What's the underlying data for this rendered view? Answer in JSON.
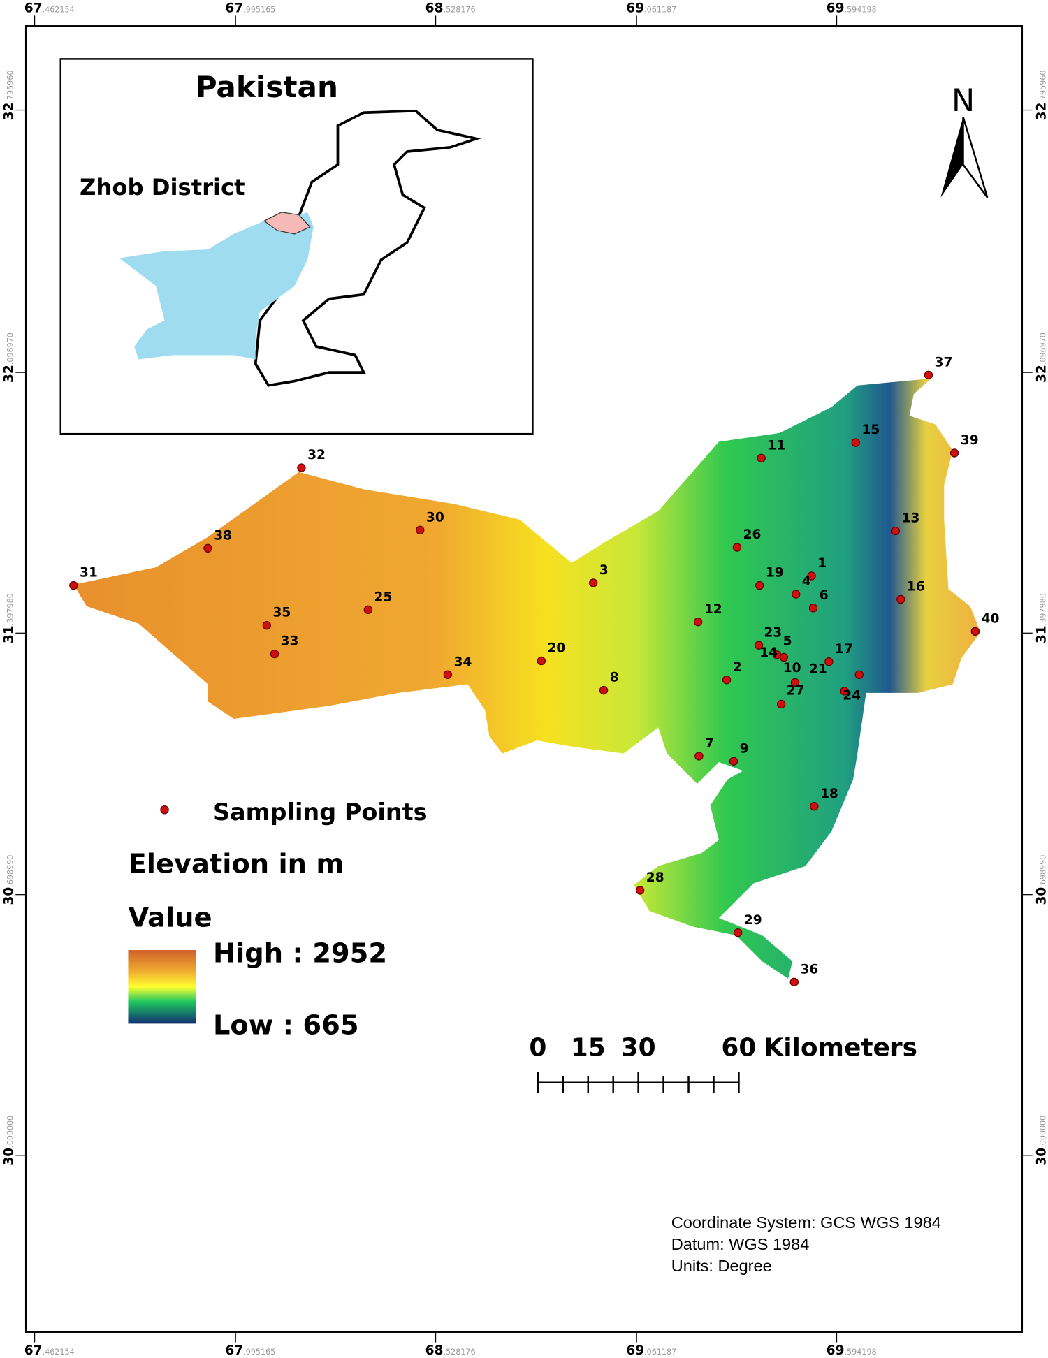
{
  "map": {
    "top_ticks": [
      {
        "whole": "67",
        "fraction": ".462154"
      },
      {
        "whole": "67",
        "fraction": ".995165"
      },
      {
        "whole": "68",
        "fraction": ".528176"
      },
      {
        "whole": "69",
        "fraction": ".061187"
      },
      {
        "whole": "69",
        "fraction": ".594198"
      }
    ],
    "side_ticks": [
      {
        "whole": "32",
        "fraction": ".795960"
      },
      {
        "whole": "32",
        "fraction": ".096970"
      },
      {
        "whole": "31",
        "fraction": ".397980"
      },
      {
        "whole": "30",
        "fraction": ".698990"
      },
      {
        "whole": "30",
        "fraction": ".000000"
      }
    ],
    "inset": {
      "title": "Pakistan",
      "label": "Zhob District"
    },
    "north": "N",
    "points": [
      "1",
      "2",
      "3",
      "4",
      "5",
      "6",
      "7",
      "8",
      "9",
      "10",
      "11",
      "12",
      "13",
      "14",
      "15",
      "16",
      "17",
      "18",
      "19",
      "20",
      "21",
      "23",
      "24",
      "25",
      "26",
      "27",
      "28",
      "29",
      "30",
      "31",
      "32",
      "33",
      "34",
      "35",
      "36",
      "37",
      "38",
      "39",
      "40"
    ],
    "legend": {
      "points": "Sampling Points",
      "elevation": "Elevation in m",
      "value": "Value",
      "high": "High : 2952",
      "low": "Low : 665"
    },
    "scale": {
      "ticks": [
        "0",
        "15",
        "30",
        "60"
      ],
      "unit": "Kilometers"
    },
    "info": [
      "Coordinate System: GCS WGS 1984",
      "Datum: WGS 1984",
      "Units: Degree"
    ]
  }
}
